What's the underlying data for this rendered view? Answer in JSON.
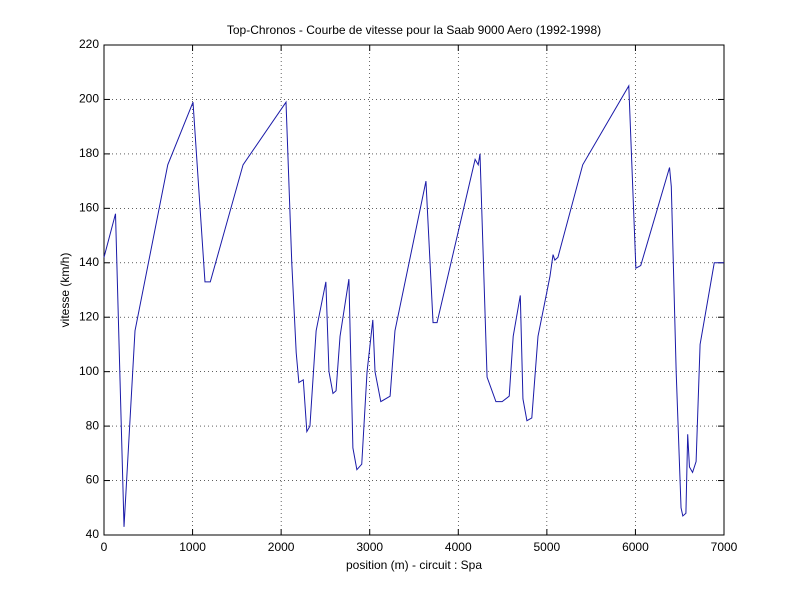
{
  "chart_data": {
    "type": "line",
    "title": "Top-Chronos - Courbe de vitesse pour la Saab 9000 Aero (1992-1998)",
    "x_label": "position (m) - circuit : Spa",
    "y_label": "vitesse (km/h)",
    "color": "#1a1aa8",
    "grid": true,
    "xlim": [
      0,
      7000
    ],
    "ylim": [
      40,
      220
    ],
    "xticks": [
      0,
      1000,
      2000,
      3000,
      4000,
      5000,
      6000,
      7000
    ],
    "yticks": [
      40,
      60,
      80,
      100,
      120,
      140,
      160,
      180,
      200,
      220
    ],
    "x": [
      0,
      130,
      226,
      350,
      720,
      1005,
      1140,
      1200,
      1570,
      2055,
      2120,
      2170,
      2200,
      2250,
      2290,
      2325,
      2395,
      2505,
      2540,
      2585,
      2620,
      2665,
      2765,
      2810,
      2855,
      2910,
      2970,
      3035,
      3060,
      3125,
      3230,
      3285,
      3635,
      3715,
      3760,
      4190,
      4225,
      4245,
      4325,
      4425,
      4495,
      4575,
      4620,
      4700,
      4730,
      4775,
      4830,
      4900,
      5035,
      5070,
      5090,
      5125,
      5405,
      5925,
      6005,
      6060,
      6385,
      6405,
      6460,
      6515,
      6535,
      6570,
      6590,
      6610,
      6645,
      6685,
      6730,
      6890,
      7000
    ],
    "values": [
      142,
      158,
      43,
      115,
      176,
      199,
      133,
      133,
      176,
      199,
      140,
      107,
      96,
      97,
      78,
      80,
      115,
      133,
      100,
      92,
      93,
      113,
      134,
      72,
      64,
      66,
      100,
      119,
      100,
      89,
      91,
      115,
      170,
      118,
      118,
      178,
      176,
      180,
      98,
      89,
      89,
      91,
      113,
      128,
      90,
      82,
      83,
      113,
      135,
      143,
      141,
      142,
      176,
      205,
      138,
      139,
      175,
      168,
      100,
      50,
      47,
      48,
      77,
      65,
      63,
      67,
      110,
      140,
      140
    ]
  }
}
